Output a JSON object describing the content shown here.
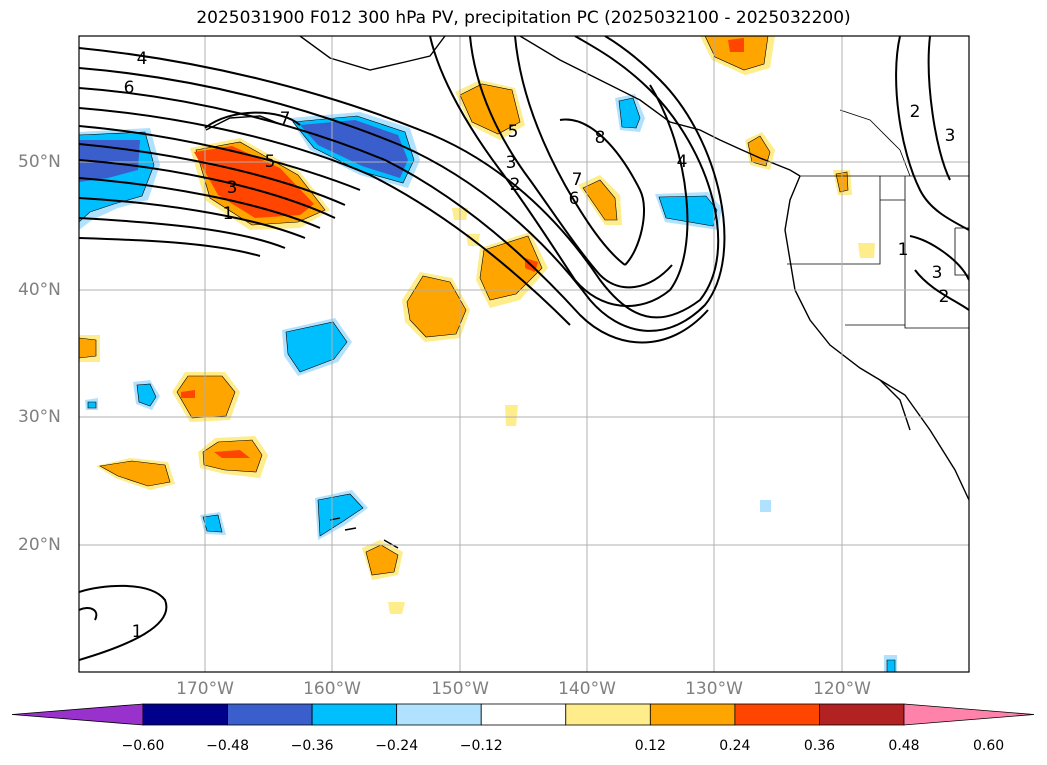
{
  "title": "2025031900 F012 300 hPa PV, precipitation PC (2025032100 - 2025032200)",
  "lat_labels": [
    "50°N",
    "40°N",
    "30°N",
    "20°N"
  ],
  "lon_labels": [
    "170°W",
    "160°W",
    "150°W",
    "140°W",
    "130°W",
    "120°W"
  ],
  "colorbar": {
    "ticks": [
      "−0.60",
      "−0.48",
      "−0.36",
      "−0.24",
      "−0.12",
      "0.12",
      "0.24",
      "0.36",
      "0.48",
      "0.60"
    ],
    "colors": [
      "#9932cc",
      "#00008b",
      "#3a5fcd",
      "#00bfff",
      "#b0e2ff",
      "#ffffff",
      "#ffec8b",
      "#ffa500",
      "#ff4500",
      "#b22222",
      "#ff82ab"
    ]
  },
  "contour_labels": [
    "4",
    "6",
    "7",
    "5",
    "3",
    "1",
    "5",
    "3",
    "2",
    "8",
    "7",
    "6",
    "4",
    "2",
    "3",
    "1",
    "3",
    "2",
    "1"
  ],
  "map": {
    "lat_range": [
      10,
      60
    ],
    "lon_range": [
      -180,
      -110
    ]
  }
}
